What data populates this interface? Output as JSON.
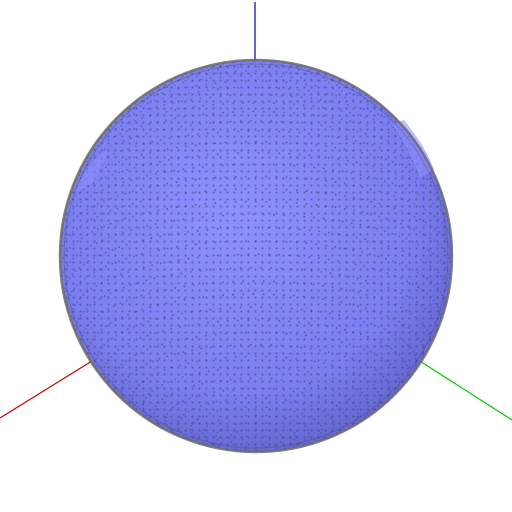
{
  "scene": {
    "object": "sphere",
    "render_style": "point-sampled mesh",
    "colors": {
      "background": "#ffffff",
      "sphere_fill": "#7b7ef0",
      "sphere_highlight": "#8d90ff",
      "sphere_shadow": "#5f63c8",
      "dot": "#3c3f7c",
      "rim": "#6b6b6b",
      "axis_x": "#cc0000",
      "axis_y": "#00cc00",
      "axis_z": "#0000aa"
    },
    "axes": [
      {
        "name": "x-axis",
        "color": "#cc0000"
      },
      {
        "name": "y-axis",
        "color": "#00cc00"
      },
      {
        "name": "z-axis",
        "color": "#0000aa"
      }
    ]
  }
}
